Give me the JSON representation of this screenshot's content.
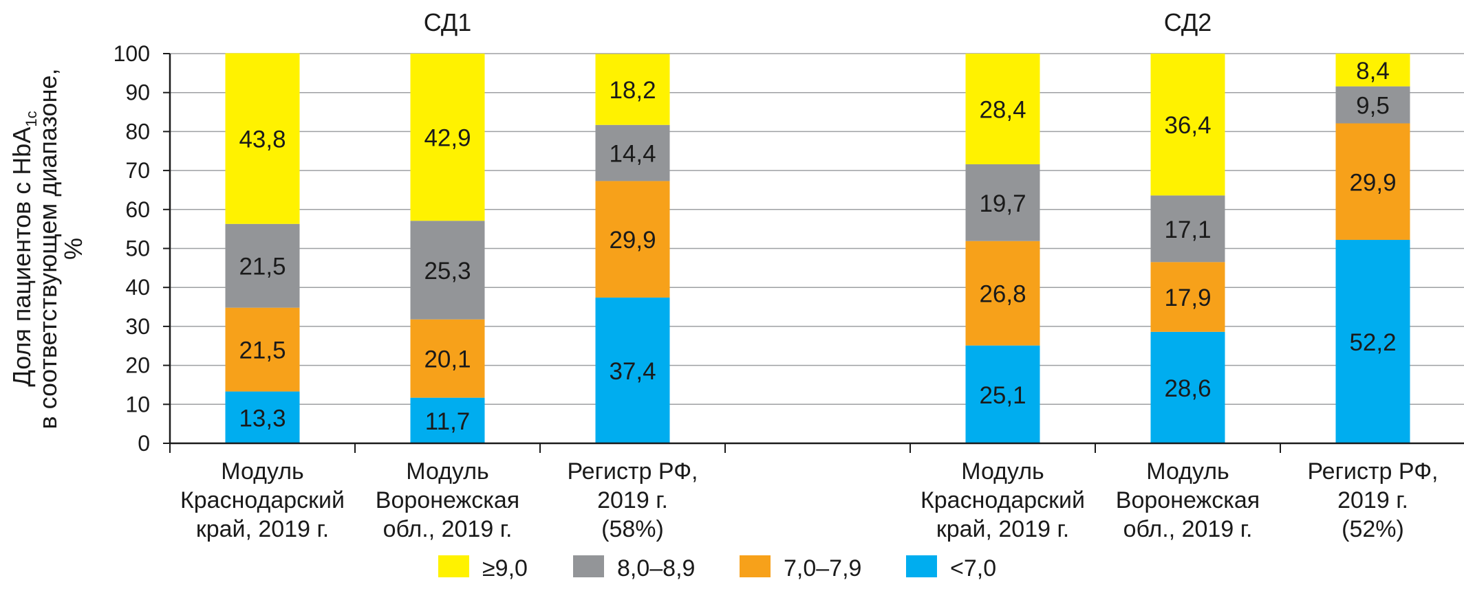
{
  "chart_data": {
    "type": "bar",
    "stacked": true,
    "ylabel_lines": [
      "Доля пациентов с HbA",
      "1c",
      "в соответствующем диапазоне,",
      "%"
    ],
    "ylim": [
      0,
      100
    ],
    "yticks": [
      0,
      10,
      20,
      30,
      40,
      50,
      60,
      70,
      80,
      90,
      100
    ],
    "grid": true,
    "groups": [
      {
        "title": "СД1",
        "categories": [
          [
            "Модуль",
            "Краснодарский",
            "край, 2019 г."
          ],
          [
            "Модуль",
            "Воронежская",
            "обл., 2019 г."
          ],
          [
            "Регистр РФ,",
            "2019 г.",
            "(58%)"
          ]
        ]
      },
      {
        "title": "СД2",
        "categories": [
          [
            "Модуль",
            "Краснодарский",
            "край, 2019 г."
          ],
          [
            "Модуль",
            "Воронежская",
            "обл., 2019 г."
          ],
          [
            "Регистр РФ,",
            "2019 г.",
            "(52%)"
          ]
        ]
      }
    ],
    "series": [
      {
        "name": "<7,0",
        "color": "#00adef",
        "values": [
          13.3,
          11.7,
          37.4,
          25.1,
          28.6,
          52.2
        ],
        "labels": [
          "13,3",
          "11,7",
          "37,4",
          "25,1",
          "28,6",
          "52,2"
        ]
      },
      {
        "name": "7,0–7,9",
        "color": "#f7a11a",
        "values": [
          21.5,
          20.1,
          29.9,
          26.8,
          17.9,
          29.9
        ],
        "labels": [
          "21,5",
          "20,1",
          "29,9",
          "26,8",
          "17,9",
          "29,9"
        ]
      },
      {
        "name": "8,0–8,9",
        "color": "#939598",
        "values": [
          21.5,
          25.3,
          14.4,
          19.7,
          17.1,
          9.5
        ],
        "labels": [
          "21,5",
          "25,3",
          "14,4",
          "19,7",
          "17,1",
          "9,5"
        ]
      },
      {
        "name": "≥9,0",
        "color": "#fff200",
        "values": [
          43.8,
          42.9,
          18.2,
          28.4,
          36.4,
          8.4
        ],
        "labels": [
          "43,8",
          "42,9",
          "18,2",
          "28,4",
          "36,4",
          "8,4"
        ]
      }
    ],
    "legend": {
      "position": "bottom",
      "order": [
        "≥9,0",
        "8,0–8,9",
        "7,0–7,9",
        "<7,0"
      ]
    }
  }
}
